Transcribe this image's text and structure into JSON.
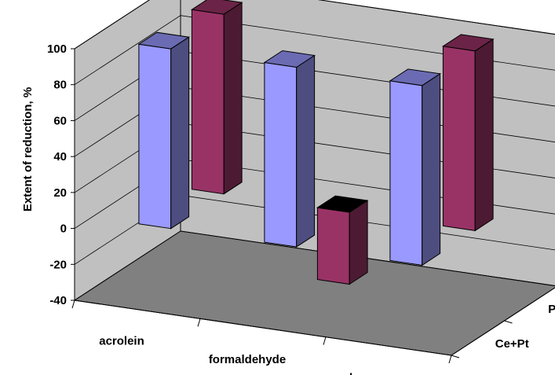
{
  "chart_data": {
    "type": "bar",
    "title": "",
    "xlabel": "",
    "ylabel": "Extent of reduction, %",
    "ylim": [
      -40,
      100
    ],
    "yticks": [
      "100",
      "80",
      "60",
      "40",
      "20",
      "0",
      "-20",
      "-40"
    ],
    "categories": [
      "acrolein",
      "formaldehyde",
      "benzene"
    ],
    "series": [
      {
        "name": "Ce+Pt",
        "values": [
          100,
          100,
          100
        ],
        "color": "#9999ff"
      },
      {
        "name": "Pt+Ce",
        "values": [
          100,
          -40,
          100
        ],
        "color": "#993366"
      }
    ],
    "grid": true,
    "legend": "none",
    "style": "3d-column",
    "floor_color": "#808080",
    "wall_color": "#c0c0c0"
  }
}
